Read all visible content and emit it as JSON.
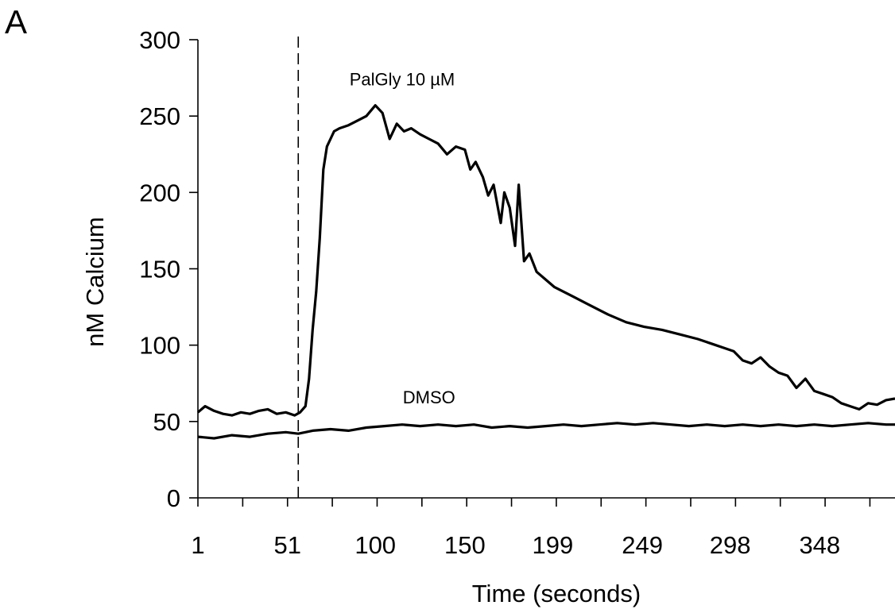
{
  "panel_label": "A",
  "chart_data": {
    "type": "line",
    "xlabel": "Time (seconds)",
    "ylabel": "nM Calcium",
    "xlim": [
      1,
      390
    ],
    "ylim": [
      0,
      300
    ],
    "yticks": [
      0,
      50,
      100,
      150,
      200,
      250,
      300
    ],
    "xtick_labels": [
      "1",
      "51",
      "100",
      "150",
      "199",
      "249",
      "298",
      "348"
    ],
    "xtick_label_positions": [
      1,
      51,
      100,
      150,
      199,
      249,
      298,
      348
    ],
    "minor_xtick_step": 25,
    "grid": false,
    "legend": "none",
    "stimulus_line": {
      "x": 57,
      "style": "dashed"
    },
    "annotations": [
      {
        "text": "PalGly 10 µM",
        "x": 115,
        "y": 270
      },
      {
        "text": "DMSO",
        "x": 130,
        "y": 62
      }
    ],
    "series": [
      {
        "name": "PalGly 10 µM",
        "color": "#000000",
        "x": [
          1,
          5,
          10,
          15,
          20,
          25,
          30,
          35,
          40,
          45,
          50,
          55,
          58,
          61,
          63,
          65,
          67,
          69,
          71,
          73,
          75,
          77,
          80,
          85,
          90,
          95,
          100,
          104,
          108,
          112,
          116,
          120,
          125,
          130,
          135,
          140,
          145,
          150,
          153,
          156,
          160,
          163,
          166,
          170,
          172,
          175,
          178,
          180,
          183,
          186,
          190,
          195,
          200,
          210,
          220,
          230,
          240,
          250,
          260,
          270,
          280,
          290,
          295,
          300,
          305,
          310,
          315,
          320,
          325,
          330,
          335,
          340,
          345,
          350,
          355,
          360,
          365,
          370,
          375,
          380,
          385,
          390
        ],
        "y": [
          56,
          60,
          57,
          55,
          54,
          56,
          55,
          57,
          58,
          55,
          56,
          54,
          56,
          60,
          78,
          110,
          135,
          170,
          215,
          230,
          235,
          240,
          242,
          244,
          247,
          250,
          257,
          252,
          235,
          245,
          240,
          242,
          238,
          235,
          232,
          225,
          230,
          228,
          215,
          220,
          210,
          198,
          205,
          180,
          200,
          190,
          165,
          205,
          155,
          160,
          148,
          143,
          138,
          132,
          126,
          120,
          115,
          112,
          110,
          107,
          104,
          100,
          98,
          96,
          90,
          88,
          92,
          86,
          82,
          80,
          72,
          78,
          70,
          68,
          66,
          62,
          60,
          58,
          62,
          61,
          64,
          65
        ]
      },
      {
        "name": "DMSO",
        "color": "#000000",
        "x": [
          1,
          10,
          20,
          30,
          40,
          50,
          57,
          65,
          75,
          85,
          95,
          105,
          115,
          125,
          135,
          145,
          155,
          165,
          175,
          185,
          195,
          205,
          215,
          225,
          235,
          245,
          255,
          265,
          275,
          285,
          295,
          305,
          315,
          325,
          335,
          345,
          355,
          365,
          375,
          385,
          390
        ],
        "y": [
          40,
          39,
          41,
          40,
          42,
          43,
          42,
          44,
          45,
          44,
          46,
          47,
          48,
          47,
          48,
          47,
          48,
          46,
          47,
          46,
          47,
          48,
          47,
          48,
          49,
          48,
          49,
          48,
          47,
          48,
          47,
          48,
          47,
          48,
          47,
          48,
          47,
          48,
          49,
          48,
          48
        ]
      }
    ]
  }
}
